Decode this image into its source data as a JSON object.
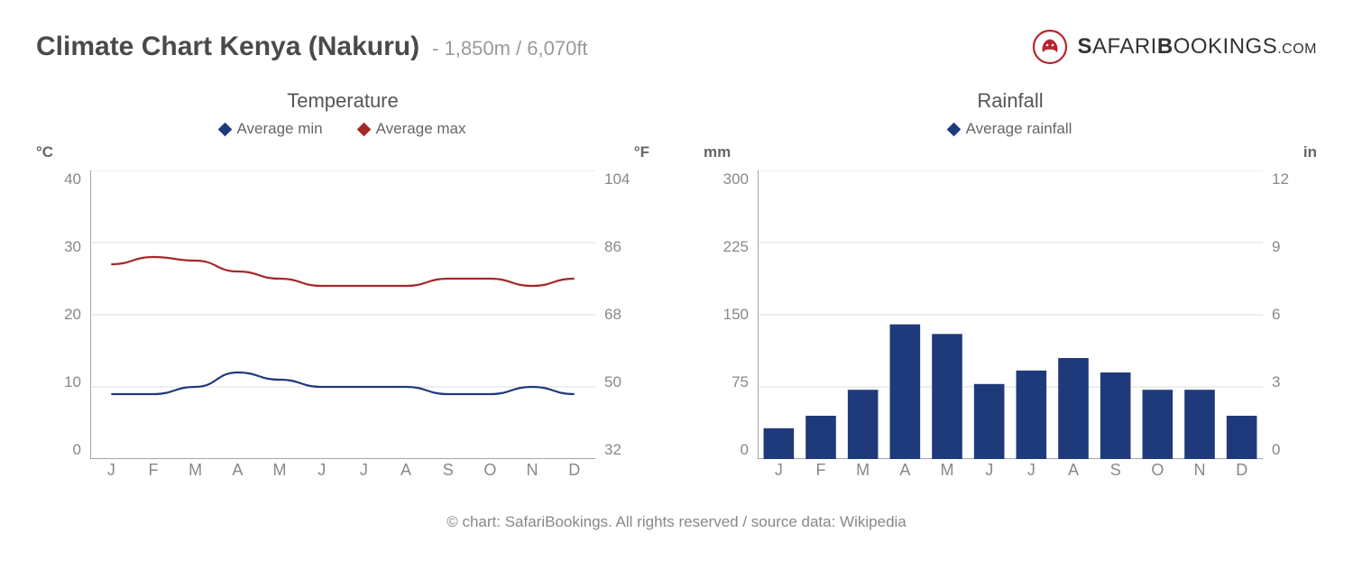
{
  "header": {
    "title": "Climate Chart Kenya (Nakuru)",
    "subtitle": "- 1,850m / 6,070ft",
    "logo": {
      "brand_part1": "S",
      "brand_part2": "AFARI",
      "brand_part3": "B",
      "brand_part4": "OOKINGS",
      "domain": ".COM",
      "icon_color": "#b8252f"
    }
  },
  "months": [
    "J",
    "F",
    "M",
    "A",
    "M",
    "J",
    "J",
    "A",
    "S",
    "O",
    "N",
    "D"
  ],
  "temperature_chart": {
    "title": "Temperature",
    "type": "line",
    "legend": [
      {
        "label": "Average min",
        "color": "#1f3a7a"
      },
      {
        "label": "Average max",
        "color": "#a52828"
      }
    ],
    "left_axis": {
      "unit": "°C",
      "min": 0,
      "max": 40,
      "ticks": [
        40,
        30,
        20,
        10,
        0
      ]
    },
    "right_axis": {
      "unit": "°F",
      "ticks": [
        104,
        86,
        68,
        50,
        32
      ]
    },
    "series": {
      "avg_min": {
        "color": "#1f3a7a",
        "width": 2.2,
        "values": [
          9,
          9,
          10,
          12,
          11,
          10,
          10,
          10,
          9,
          9,
          10,
          9
        ]
      },
      "avg_max": {
        "color": "#a52828",
        "width": 2.2,
        "values": [
          27,
          28,
          27.5,
          26,
          25,
          24,
          24,
          24,
          25,
          25,
          24,
          25
        ]
      }
    },
    "grid_color": "#dddddd",
    "axis_color": "#888888",
    "background": "#ffffff"
  },
  "rainfall_chart": {
    "title": "Rainfall",
    "type": "bar",
    "legend": [
      {
        "label": "Average rainfall",
        "color": "#1f3a7a"
      }
    ],
    "left_axis": {
      "unit": "mm",
      "min": 0,
      "max": 300,
      "ticks": [
        300,
        225,
        150,
        75,
        0
      ]
    },
    "right_axis": {
      "unit": "in",
      "ticks": [
        12,
        9,
        6,
        3,
        0
      ]
    },
    "values": [
      32,
      45,
      72,
      140,
      130,
      78,
      92,
      105,
      90,
      72,
      72,
      45
    ],
    "bar_color": "#1f3a7a",
    "bar_width": 0.72,
    "grid_color": "#dddddd",
    "axis_color": "#888888",
    "background": "#ffffff"
  },
  "credit": "© chart: SafariBookings. All rights reserved / source data: Wikipedia"
}
